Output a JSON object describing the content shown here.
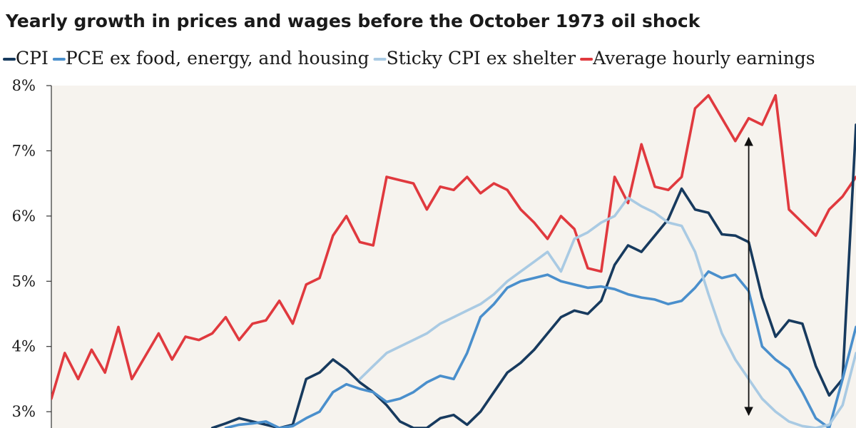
{
  "chart_data": {
    "type": "line",
    "title": "Yearly growth in prices and wages before the October 1973 oil shock",
    "xlabel": "",
    "ylabel": "",
    "y_tick_labels": [
      "3%",
      "4%",
      "5%",
      "6%",
      "7%",
      "8%"
    ],
    "y_ticks": [
      3,
      4,
      5,
      6,
      7,
      8
    ],
    "ylim": [
      2.75,
      8.0
    ],
    "x_count": 121,
    "series": [
      {
        "name": "CPI",
        "color": "#173a5e",
        "x": [
          24,
          26,
          28,
          30,
          32,
          34,
          36,
          38,
          40,
          42,
          44,
          46,
          48,
          50,
          52,
          54,
          56,
          58,
          60,
          62,
          64,
          66,
          68,
          70,
          72,
          74,
          76,
          78,
          80,
          82,
          84,
          86,
          88,
          90,
          92,
          94,
          96,
          98,
          100,
          102,
          104,
          106,
          108,
          110,
          112,
          114,
          116,
          118,
          120
        ],
        "values": [
          2.75,
          2.82,
          2.9,
          2.85,
          2.8,
          2.75,
          2.8,
          3.5,
          3.6,
          3.8,
          3.65,
          3.45,
          3.3,
          3.1,
          2.85,
          2.75,
          2.75,
          2.9,
          2.95,
          2.8,
          3.0,
          3.3,
          3.6,
          3.75,
          3.95,
          4.2,
          4.45,
          4.55,
          4.5,
          4.7,
          5.25,
          5.55,
          5.45,
          5.7,
          5.95,
          6.42,
          6.1,
          6.05,
          5.72,
          5.7,
          5.6,
          4.75,
          4.15,
          4.4,
          4.35,
          3.7,
          3.25,
          3.5,
          7.4
        ]
      },
      {
        "name": "PCE ex food, energy, and housing",
        "color": "#4a8fcc",
        "x": [
          26,
          28,
          30,
          32,
          34,
          36,
          38,
          40,
          42,
          44,
          46,
          48,
          50,
          52,
          54,
          56,
          58,
          60,
          62,
          64,
          66,
          68,
          70,
          72,
          74,
          76,
          78,
          80,
          82,
          84,
          86,
          88,
          90,
          92,
          94,
          96,
          98,
          100,
          102,
          104,
          106,
          108,
          110,
          112,
          114,
          116,
          118,
          120
        ],
        "values": [
          2.75,
          2.8,
          2.82,
          2.85,
          2.75,
          2.78,
          2.9,
          3.0,
          3.3,
          3.42,
          3.35,
          3.3,
          3.15,
          3.2,
          3.3,
          3.45,
          3.55,
          3.5,
          3.9,
          4.45,
          4.65,
          4.9,
          5.0,
          5.05,
          5.1,
          5.0,
          4.95,
          4.9,
          4.92,
          4.88,
          4.8,
          4.75,
          4.72,
          4.65,
          4.7,
          4.9,
          5.15,
          5.05,
          5.1,
          4.85,
          4.0,
          3.8,
          3.65,
          3.3,
          2.9,
          2.75,
          3.5,
          4.3
        ]
      },
      {
        "name": "Sticky CPI ex shelter",
        "color": "#a9cae3",
        "x": [
          46,
          48,
          50,
          52,
          54,
          56,
          58,
          60,
          62,
          64,
          66,
          68,
          70,
          72,
          74,
          76,
          78,
          80,
          82,
          84,
          86,
          88,
          90,
          92,
          94,
          96,
          98,
          100,
          102,
          104,
          106,
          108,
          110,
          112,
          114,
          116,
          118,
          120
        ],
        "values": [
          3.5,
          3.7,
          3.9,
          4.0,
          4.1,
          4.2,
          4.35,
          4.45,
          4.55,
          4.65,
          4.8,
          5.0,
          5.15,
          5.3,
          5.45,
          5.15,
          5.65,
          5.75,
          5.9,
          6.0,
          6.28,
          6.15,
          6.05,
          5.9,
          5.85,
          5.45,
          4.8,
          4.2,
          3.8,
          3.5,
          3.2,
          3.0,
          2.85,
          2.78,
          2.75,
          2.8,
          3.1,
          3.9
        ]
      },
      {
        "name": "Average hourly earnings",
        "color": "#e0393e",
        "x": [
          0,
          2,
          4,
          6,
          8,
          10,
          12,
          14,
          16,
          18,
          20,
          22,
          24,
          26,
          28,
          30,
          32,
          34,
          36,
          38,
          40,
          42,
          44,
          46,
          48,
          50,
          52,
          54,
          56,
          58,
          60,
          62,
          64,
          66,
          68,
          70,
          72,
          74,
          76,
          78,
          80,
          82,
          84,
          86,
          88,
          90,
          92,
          94,
          96,
          98,
          100,
          102,
          104,
          106,
          108,
          110,
          112,
          114,
          116,
          118,
          120
        ],
        "values": [
          3.2,
          3.9,
          3.5,
          3.95,
          3.6,
          4.3,
          3.5,
          3.85,
          4.2,
          3.8,
          4.15,
          4.1,
          4.2,
          4.45,
          4.1,
          4.35,
          4.4,
          4.7,
          4.35,
          4.95,
          5.05,
          5.7,
          6.0,
          5.6,
          5.55,
          6.6,
          6.55,
          6.5,
          6.1,
          6.45,
          6.4,
          6.6,
          6.35,
          6.5,
          6.4,
          6.1,
          5.9,
          5.65,
          6.0,
          5.8,
          5.2,
          5.15,
          6.6,
          6.2,
          7.1,
          6.45,
          6.4,
          6.6,
          7.65,
          7.85,
          7.5,
          7.15,
          7.5,
          7.4,
          7.85,
          6.1,
          5.9,
          5.7,
          6.1,
          6.3,
          6.6
        ]
      }
    ],
    "annotations": [
      {
        "type": "double-arrow",
        "x": 104,
        "from": 2.95,
        "to": 7.2
      }
    ],
    "legend_position": "top",
    "grid": false,
    "background": "#f6f3ee"
  }
}
